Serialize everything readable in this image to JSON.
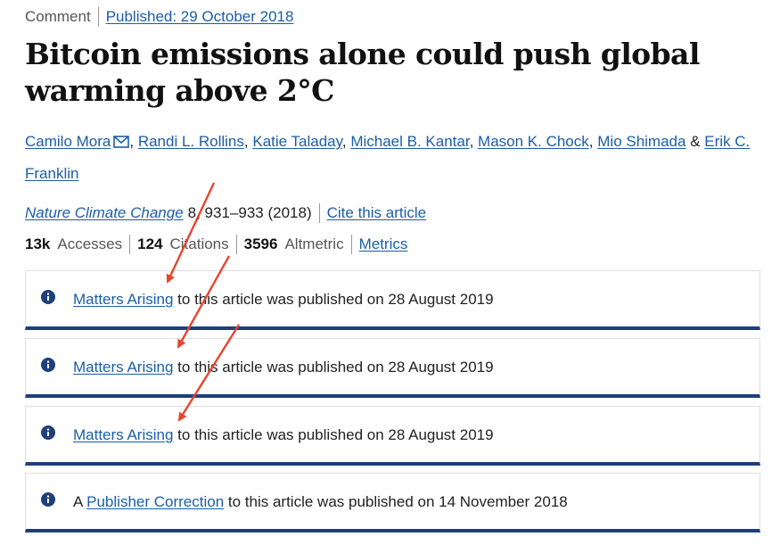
{
  "header": {
    "article_type": "Comment",
    "published": "Published: 29 October 2018"
  },
  "title": "Bitcoin emissions alone could push global warming above 2°C",
  "authors": {
    "list": [
      "Camilo Mora",
      "Randi L. Rollins",
      "Katie Taladay",
      "Michael B. Kantar",
      "Mason K. Chock",
      "Mio Shimada",
      "Erik C. Franklin"
    ],
    "comma": ",",
    "ampersand": "&"
  },
  "journal": {
    "name": "Nature Climate Change",
    "details": "8, 931–933 (2018)",
    "cite": "Cite this article"
  },
  "metrics": {
    "accesses_value": "13k",
    "accesses_label": "Accesses",
    "citations_value": "124",
    "citations_label": "Citations",
    "altmetric_value": "3596",
    "altmetric_label": "Altmetric",
    "metrics_link": "Metrics"
  },
  "notices": [
    {
      "prefix": "",
      "link": "Matters Arising",
      "text": "to this article was published on 28 August 2019"
    },
    {
      "prefix": "",
      "link": "Matters Arising",
      "text": "to this article was published on 28 August 2019"
    },
    {
      "prefix": "",
      "link": "Matters Arising",
      "text": "to this article was published on 28 August 2019"
    },
    {
      "prefix": "A",
      "link": "Publisher Correction",
      "text": "to this article was published on 14 November 2018"
    }
  ],
  "colors": {
    "link": "#1a5ea8",
    "notice_border": "#1e3f7a",
    "annotation_arrow": "#e8442e"
  }
}
